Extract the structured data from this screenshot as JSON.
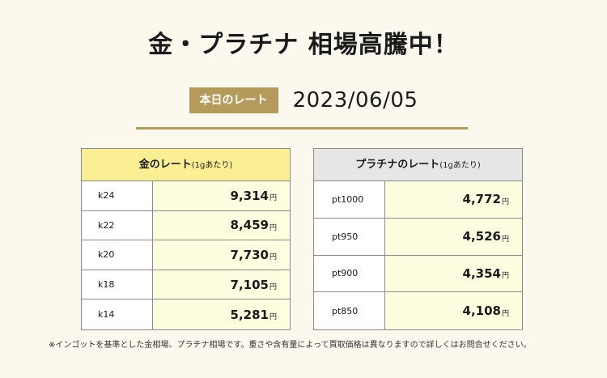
{
  "headline": "金・プラチナ 相場高騰中！",
  "rate_tag": "本日のレート",
  "rate_date": "2023/06/05",
  "gold": {
    "title": "金のレート",
    "subtitle": "(1gあたり)",
    "rows": [
      {
        "label": "k24",
        "price": "9,314",
        "unit": "円"
      },
      {
        "label": "k22",
        "price": "8,459",
        "unit": "円"
      },
      {
        "label": "k20",
        "price": "7,730",
        "unit": "円"
      },
      {
        "label": "k18",
        "price": "7,105",
        "unit": "円"
      },
      {
        "label": "k14",
        "price": "5,281",
        "unit": "円"
      }
    ]
  },
  "platinum": {
    "title": "プラチナのレート",
    "subtitle": "(1gあたり)",
    "rows": [
      {
        "label": "pt1000",
        "price": "4,772",
        "unit": "円"
      },
      {
        "label": "pt950",
        "price": "4,526",
        "unit": "円"
      },
      {
        "label": "pt900",
        "price": "4,354",
        "unit": "円"
      },
      {
        "label": "pt850",
        "price": "4,108",
        "unit": "円"
      }
    ]
  },
  "footnote": "※インゴットを基準とした金相場、プラチナ相場です。重さや含有量によって買取価格は異なりますので詳しくはお問合せください。",
  "colors": {
    "background": "#fbf8ee",
    "accent_gold": "#b59b5b",
    "gold_header": "#faef92",
    "platinum_header": "#e6e6e6",
    "value_cell": "#fdfde0"
  }
}
